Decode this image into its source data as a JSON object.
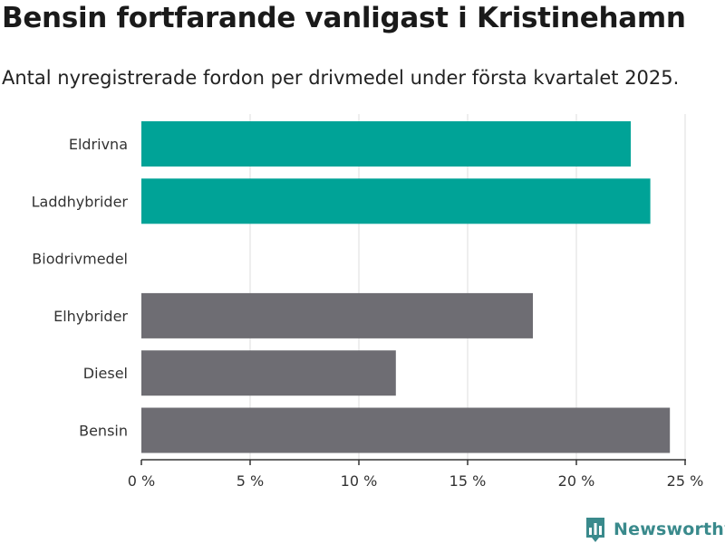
{
  "header": {
    "title": "Bensin fortfarande vanligast i Kristinehamn",
    "subtitle": "Antal nyregistrerade fordon per drivmedel under första kvartalet 2025."
  },
  "brand": {
    "name": "Newsworthy",
    "logo_icon": "bar-chart-logo-icon",
    "color": "#3a8a8c"
  },
  "chart_data": {
    "type": "bar",
    "orientation": "horizontal",
    "categories": [
      "Eldrivna",
      "Laddhybrider",
      "Biodrivmedel",
      "Elhybrider",
      "Diesel",
      "Bensin"
    ],
    "values": [
      22.5,
      23.4,
      0,
      18.0,
      11.7,
      24.3
    ],
    "colors": [
      "#00a397",
      "#00a397",
      "#00a397",
      "#6e6d73",
      "#6e6d73",
      "#6e6d73"
    ],
    "xlim": [
      0,
      25
    ],
    "xticks": [
      0,
      5,
      10,
      15,
      20,
      25
    ],
    "xtick_labels": [
      "0 %",
      "5 %",
      "10 %",
      "15 %",
      "20 %",
      "25 %"
    ],
    "grid": true,
    "legend": "none"
  }
}
